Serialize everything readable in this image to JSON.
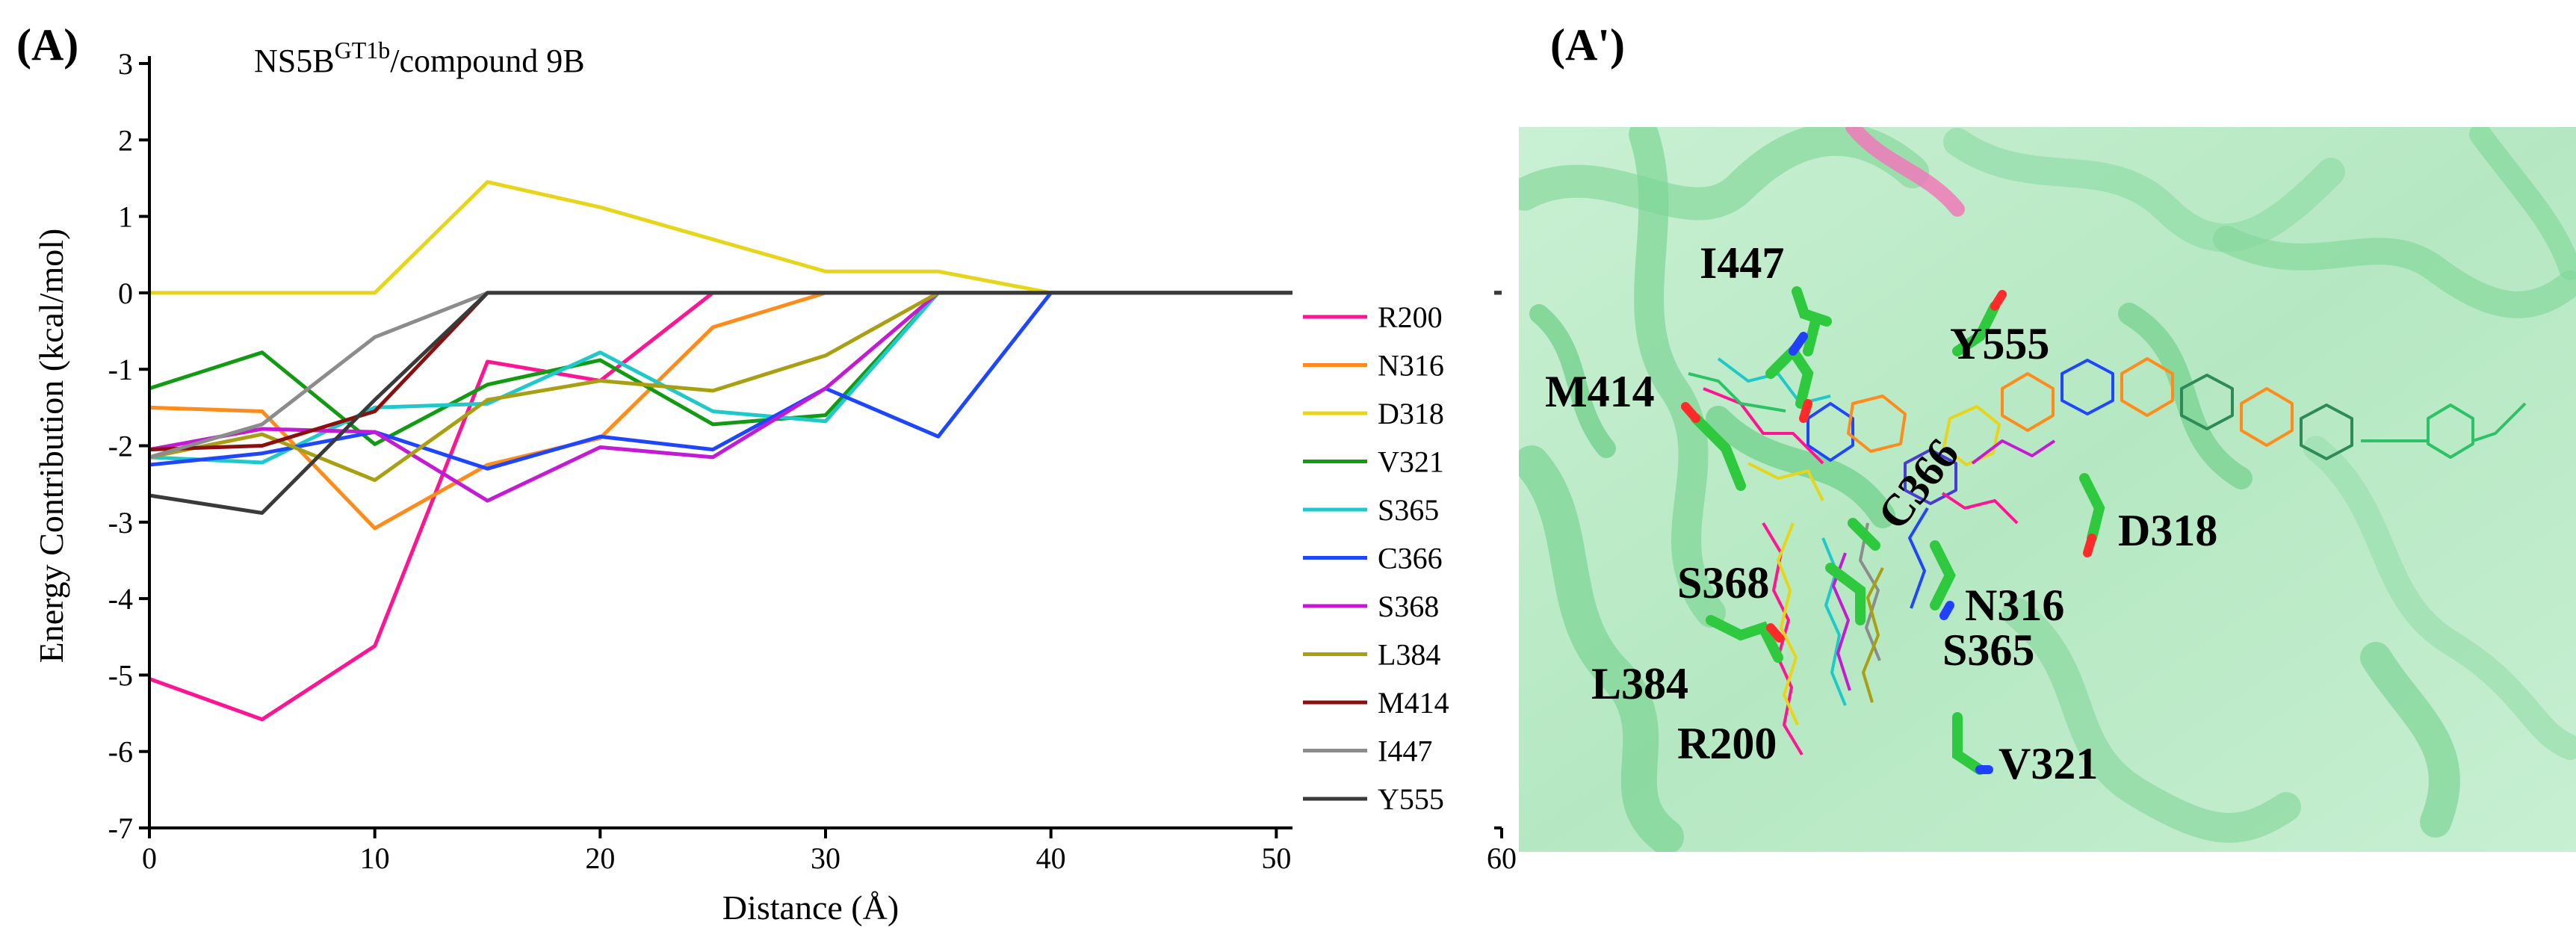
{
  "panel_a_label": "(A)",
  "panel_b_label": "(A')",
  "chart_data": {
    "type": "line",
    "title": {
      "main": "NS5B",
      "sup": "GT1b",
      "rest": "/compound 9B"
    },
    "xlabel": "Distance (Å)",
    "ylabel": "Energy Contribution (kcal/mol)",
    "xlim": [
      0,
      60
    ],
    "ylim": [
      -7,
      3
    ],
    "xticks": [
      0,
      10,
      20,
      30,
      40,
      50,
      60
    ],
    "yticks": [
      -7,
      -6,
      -5,
      -4,
      -3,
      -2,
      -1,
      0,
      1,
      2,
      3
    ],
    "x": [
      0,
      5,
      10,
      15,
      20,
      25,
      30,
      35,
      40,
      45,
      50,
      55,
      60
    ],
    "series": [
      {
        "name": "R200",
        "color": "#ff1493",
        "values": [
          -5.05,
          -5.58,
          -4.62,
          -0.9,
          -1.15,
          0,
          0,
          0,
          0,
          0,
          0,
          0,
          0
        ]
      },
      {
        "name": "N316",
        "color": "#ff8c1a",
        "values": [
          -1.5,
          -1.55,
          -3.08,
          -2.25,
          -1.9,
          -0.45,
          0,
          0,
          0,
          0,
          0,
          0,
          0
        ]
      },
      {
        "name": "D318",
        "color": "#e6d51a",
        "values": [
          0,
          0,
          0,
          1.45,
          1.12,
          0.7,
          0.28,
          0.28,
          0,
          0,
          0,
          0,
          0
        ]
      },
      {
        "name": "V321",
        "color": "#129b12",
        "values": [
          -1.25,
          -0.78,
          -1.98,
          -1.2,
          -0.88,
          -1.72,
          -1.6,
          0,
          0,
          0,
          0,
          0,
          0
        ]
      },
      {
        "name": "S365",
        "color": "#20c9c9",
        "values": [
          -2.15,
          -2.22,
          -1.5,
          -1.45,
          -0.78,
          -1.55,
          -1.68,
          0,
          0,
          0,
          0,
          0,
          0
        ]
      },
      {
        "name": "C366",
        "color": "#1e46ff",
        "values": [
          -2.25,
          -2.1,
          -1.82,
          -2.3,
          -1.88,
          -2.05,
          -1.25,
          -1.88,
          0,
          0,
          0,
          0,
          0
        ]
      },
      {
        "name": "S368",
        "color": "#c41ad6",
        "values": [
          -2.05,
          -1.78,
          -1.82,
          -2.72,
          -2.02,
          -2.15,
          -1.25,
          0,
          0,
          0,
          0,
          0,
          0
        ]
      },
      {
        "name": "L384",
        "color": "#a8a012",
        "values": [
          -2.15,
          -1.85,
          -2.45,
          -1.4,
          -1.15,
          -1.28,
          -0.82,
          0,
          0,
          0,
          0,
          0,
          0
        ]
      },
      {
        "name": "M414",
        "color": "#8b0f0f",
        "values": [
          -2.05,
          -2.0,
          -1.55,
          0,
          0,
          0,
          0,
          0,
          0,
          0,
          0,
          0,
          0
        ]
      },
      {
        "name": "I447",
        "color": "#8c8c8c",
        "values": [
          -2.15,
          -1.72,
          -0.58,
          0,
          0,
          0,
          0,
          0,
          0,
          0,
          0,
          0,
          0
        ]
      },
      {
        "name": "Y555",
        "color": "#3a3a3a",
        "values": [
          -2.65,
          -2.88,
          -1.4,
          0,
          0,
          0,
          0,
          0,
          0,
          0,
          0,
          0,
          0
        ]
      }
    ],
    "legend_position": "right"
  },
  "residue_labels": [
    "I447",
    "Y555",
    "M414",
    "C366",
    "D318",
    "S368",
    "N316",
    "S365",
    "L384",
    "R200",
    "V321"
  ]
}
